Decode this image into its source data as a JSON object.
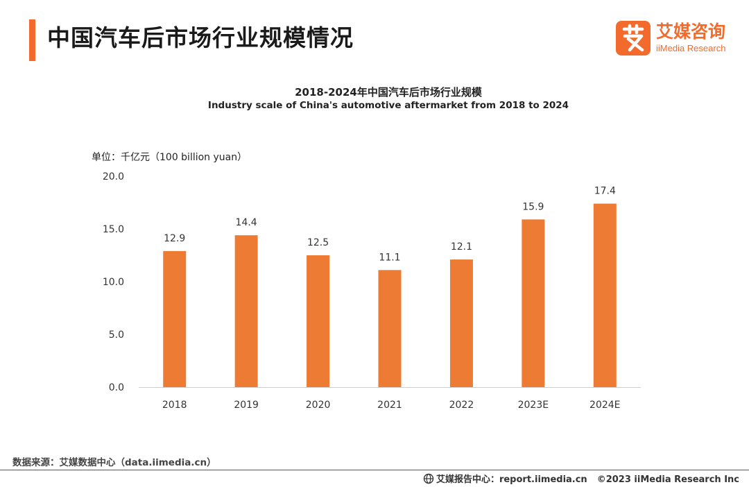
{
  "header": {
    "title": "中国汽车后市场行业规模情况",
    "logo_icon": "ai-logo-icon",
    "logo_cn": "艾媒咨询",
    "logo_en": "iiMedia Research",
    "accent_color": "#f26b2c"
  },
  "chart_data": {
    "type": "bar",
    "title": "2018-2024年中国汽车后市场行业规模",
    "subtitle": "Industry scale of China's automotive aftermarket from 2018 to 2024",
    "unit_label": "单位：千亿元（100 billion yuan）",
    "categories": [
      "2018",
      "2019",
      "2020",
      "2021",
      "2022",
      "2023E",
      "2024E"
    ],
    "values": [
      12.9,
      14.4,
      12.5,
      11.1,
      12.1,
      15.9,
      17.4
    ],
    "value_labels": [
      "12.9",
      "14.4",
      "12.5",
      "11.1",
      "12.1",
      "15.9",
      "17.4"
    ],
    "y_ticks": [
      "0.0",
      "5.0",
      "10.0",
      "15.0",
      "20.0"
    ],
    "ylim": [
      0,
      20
    ],
    "bar_color": "#ee7b33",
    "grid": false,
    "xlabel": "",
    "ylabel": ""
  },
  "footer": {
    "source": "数据来源：艾媒数据中心（data.iimedia.cn）",
    "report_icon": "globe-icon",
    "report_center": "艾媒报告中心：report.iimedia.cn",
    "copyright": "©2023  iiMedia Research  Inc"
  }
}
